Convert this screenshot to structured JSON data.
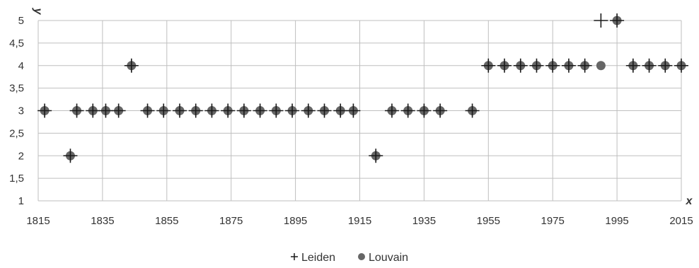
{
  "chart_data": {
    "type": "scatter",
    "xlabel": "x",
    "ylabel": "y",
    "xlim": [
      1815,
      2015
    ],
    "ylim": [
      1,
      5
    ],
    "x_ticks": [
      "1815",
      "1835",
      "1855",
      "1875",
      "1895",
      "1915",
      "1935",
      "1955",
      "1975",
      "1995",
      "2015"
    ],
    "y_ticks": [
      "1",
      "1,5",
      "2",
      "2,5",
      "3",
      "3,5",
      "4",
      "4,5",
      "5"
    ],
    "grid": true,
    "legend_position": "bottom",
    "series": [
      {
        "name": "Leiden",
        "marker": "plus",
        "color": "#1a1a1a",
        "x": [
          1817,
          1825,
          1827,
          1832,
          1836,
          1840,
          1844,
          1849,
          1854,
          1859,
          1864,
          1869,
          1874,
          1879,
          1884,
          1889,
          1894,
          1899,
          1904,
          1909,
          1913,
          1920,
          1925,
          1930,
          1935,
          1940,
          1950,
          1955,
          1960,
          1965,
          1970,
          1975,
          1980,
          1985,
          1990,
          1995,
          2000,
          2005,
          2010,
          2015
        ],
        "y": [
          3,
          2,
          3,
          3,
          3,
          3,
          4,
          3,
          3,
          3,
          3,
          3,
          3,
          3,
          3,
          3,
          3,
          3,
          3,
          3,
          3,
          2,
          3,
          3,
          3,
          3,
          3,
          4,
          4,
          4,
          4,
          4,
          4,
          4,
          5,
          5,
          4,
          4,
          4,
          4
        ]
      },
      {
        "name": "Louvain",
        "marker": "circle",
        "color": "#666666",
        "x": [
          1817,
          1825,
          1827,
          1832,
          1836,
          1840,
          1844,
          1849,
          1854,
          1859,
          1864,
          1869,
          1874,
          1879,
          1884,
          1889,
          1894,
          1899,
          1904,
          1909,
          1913,
          1920,
          1925,
          1930,
          1935,
          1940,
          1950,
          1955,
          1960,
          1965,
          1970,
          1975,
          1980,
          1985,
          1990,
          1995,
          2000,
          2005,
          2010,
          2015
        ],
        "y": [
          3,
          2,
          3,
          3,
          3,
          3,
          4,
          3,
          3,
          3,
          3,
          3,
          3,
          3,
          3,
          3,
          3,
          3,
          3,
          3,
          3,
          2,
          3,
          3,
          3,
          3,
          3,
          4,
          4,
          4,
          4,
          4,
          4,
          4,
          4,
          5,
          4,
          4,
          4,
          4
        ]
      }
    ]
  }
}
